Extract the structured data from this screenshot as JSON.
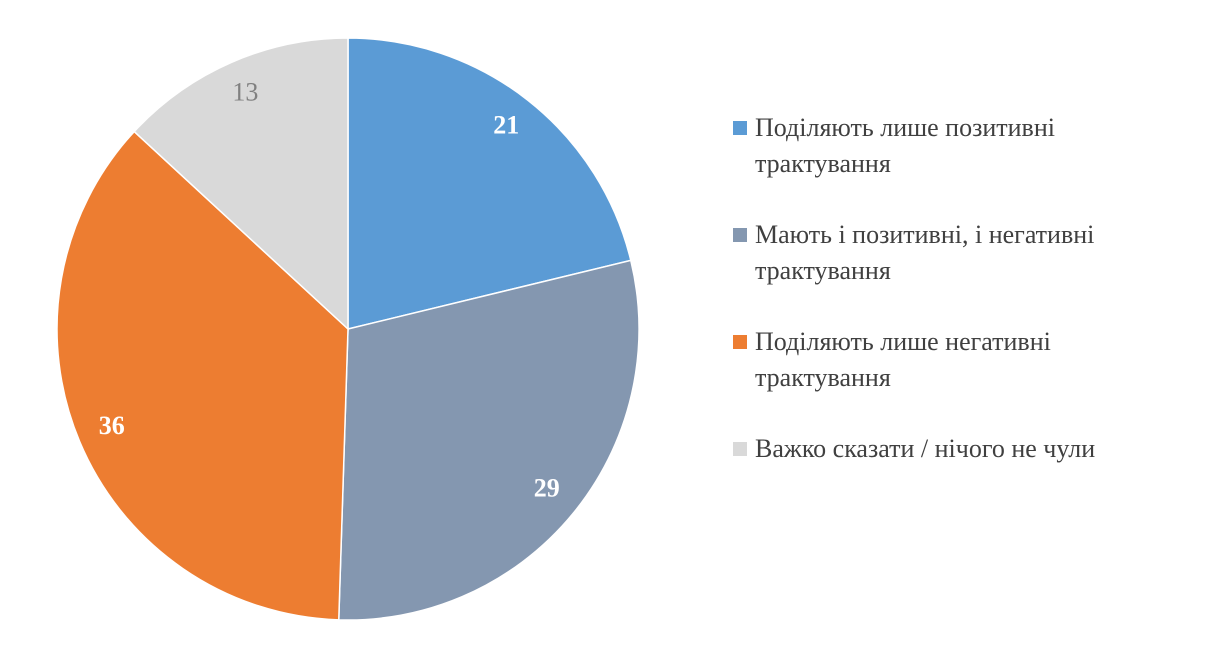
{
  "chart_data": {
    "type": "pie",
    "categories": [
      "Поділяють лише позитивні трактування",
      "Мають і позитивні, і негативні трактування",
      "Поділяють лише негативні трактування",
      "Важко сказати / нічого не чули"
    ],
    "values": [
      21,
      29,
      36,
      13
    ],
    "colors": [
      "#5b9bd5",
      "#8497b0",
      "#ed7d31",
      "#d9d9d9"
    ],
    "label_colors": [
      "#ffffff",
      "#ffffff",
      "#ffffff",
      "#808080"
    ],
    "legend": "right"
  }
}
